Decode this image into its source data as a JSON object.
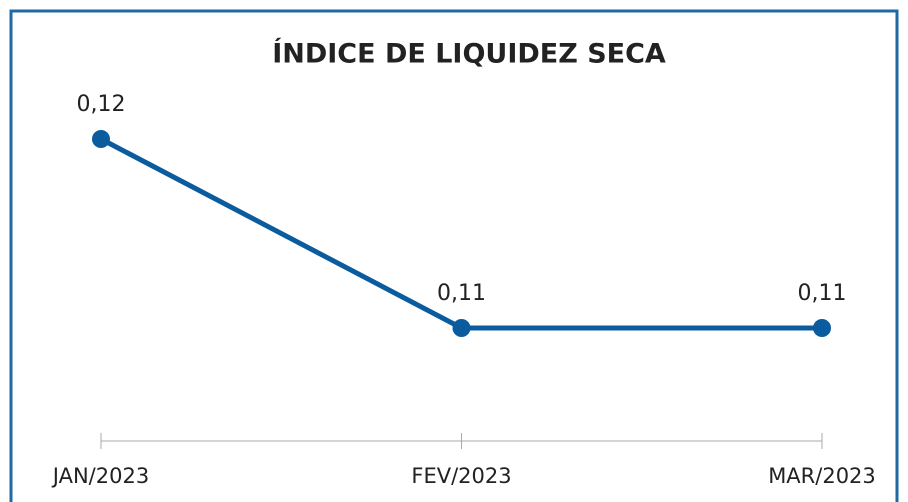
{
  "chart_data": {
    "type": "line",
    "title": "ÍNDICE DE LIQUIDEZ SECA",
    "categories": [
      "JAN/2023",
      "FEV/2023",
      "MAR/2023"
    ],
    "series": [
      {
        "color": "#0b5c9e",
        "values": [
          0.12,
          0.11,
          0.11
        ],
        "value_labels": [
          "0,12",
          "0,11",
          "0,11"
        ]
      }
    ]
  }
}
